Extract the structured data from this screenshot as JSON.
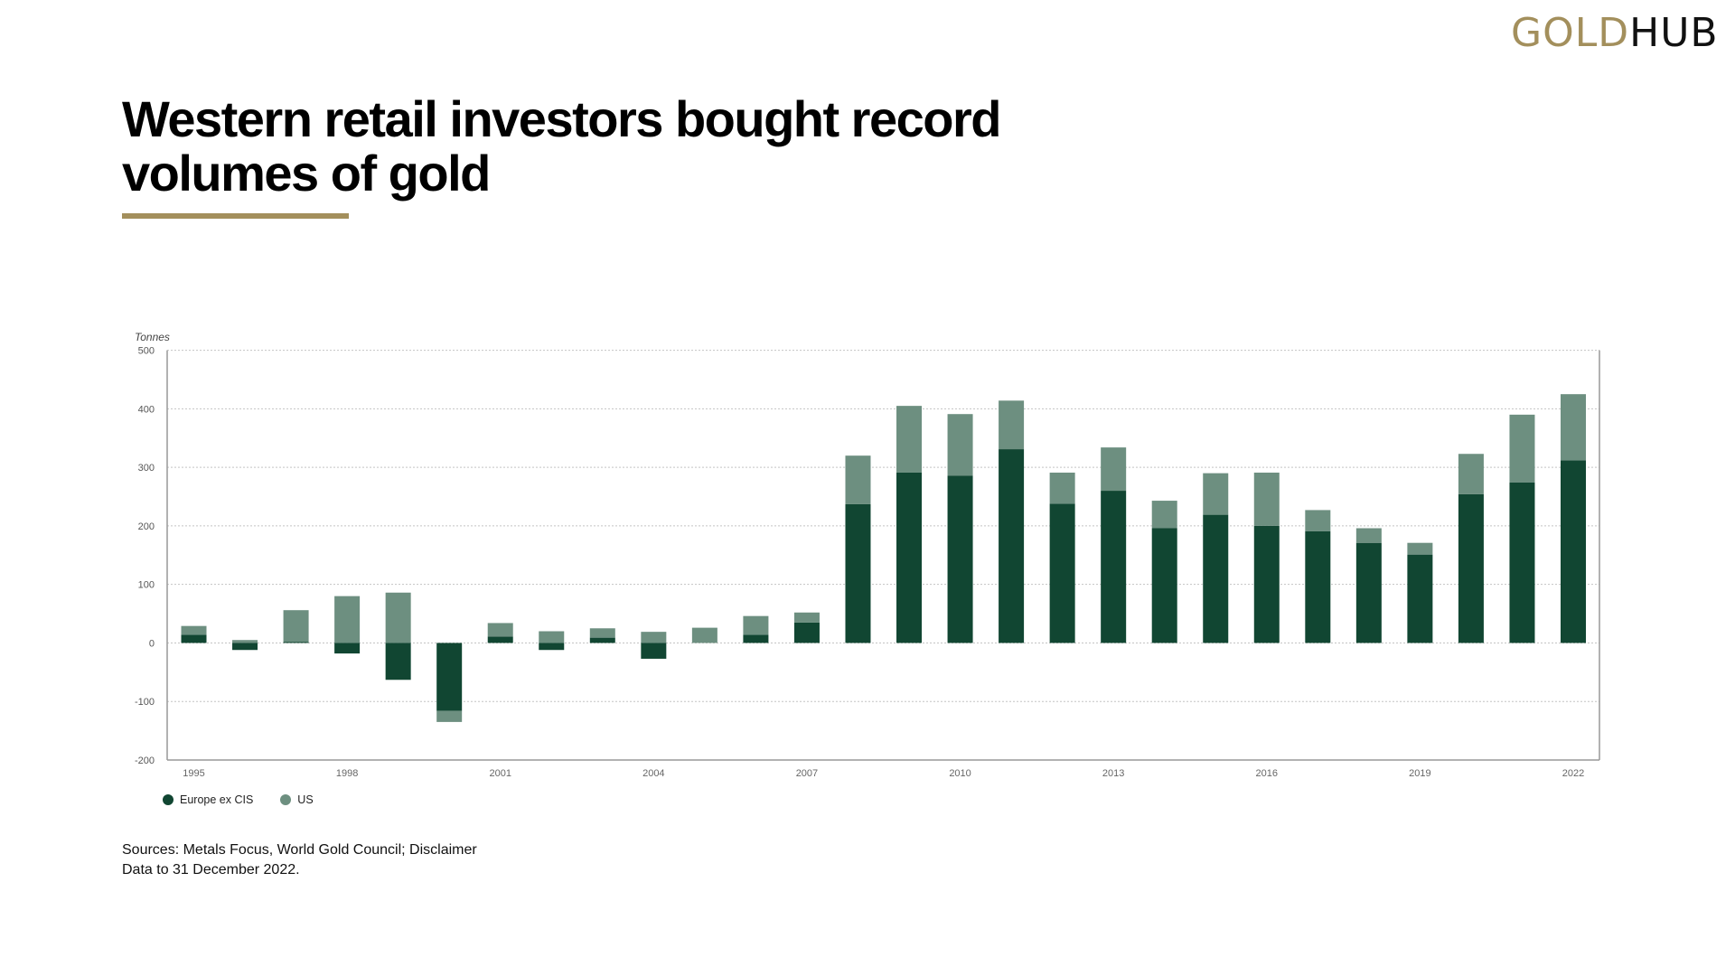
{
  "logo": {
    "part1": "GOLD",
    "part2": "HUB",
    "colors": {
      "gold": "#a38f5c",
      "dark": "#111111"
    }
  },
  "title": "Western retail investors bought record volumes of gold",
  "footer": {
    "sources": "Sources: Metals Focus, World Gold Council; Disclaimer",
    "data_note": "Data to 31 December 2022."
  },
  "chart_data": {
    "type": "bar",
    "stacked": true,
    "title": "Western retail investors bought record volumes of gold",
    "ylabel": "Tonnes",
    "xlabel": "",
    "ylim": [
      -200,
      500
    ],
    "yticks": [
      500,
      400,
      300,
      200,
      100,
      0,
      -100,
      -200
    ],
    "grid": true,
    "legend_position": "bottom-left",
    "categories": [
      "1995",
      "1996",
      "1997",
      "1998",
      "1999",
      "2000",
      "2001",
      "2002",
      "2003",
      "2004",
      "2005",
      "2006",
      "2007",
      "2008",
      "2009",
      "2010",
      "2011",
      "2012",
      "2013",
      "2014",
      "2015",
      "2016",
      "2017",
      "2018",
      "2019",
      "2020",
      "2021",
      "2022"
    ],
    "xtick_labels": [
      "1995",
      "1998",
      "2001",
      "2004",
      "2007",
      "2010",
      "2013",
      "2016",
      "2019",
      "2022"
    ],
    "series": [
      {
        "name": "Europe ex CIS",
        "color": "#114632",
        "values": [
          14,
          -12,
          2,
          -18,
          -63,
          -116,
          11,
          -12,
          9,
          -27,
          0,
          14,
          35,
          237,
          291,
          286,
          331,
          238,
          260,
          196,
          219,
          200,
          191,
          171,
          151,
          254,
          274,
          312
        ]
      },
      {
        "name": "US",
        "color": "#6d8f80",
        "values": [
          15,
          5,
          54,
          80,
          86,
          -19,
          23,
          20,
          16,
          19,
          26,
          32,
          17,
          83,
          114,
          105,
          83,
          53,
          74,
          47,
          71,
          91,
          36,
          25,
          20,
          69,
          116,
          113
        ]
      }
    ]
  }
}
